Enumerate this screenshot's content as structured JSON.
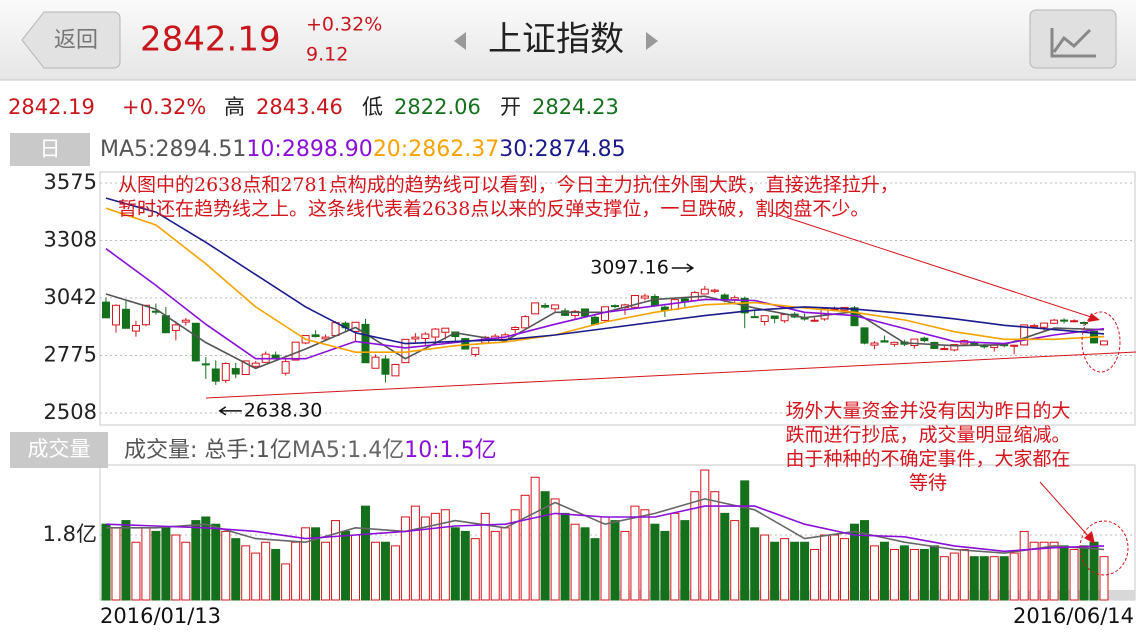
{
  "header": {
    "back": "返回",
    "price": "2842.19",
    "change_pct": "+0.32%",
    "change": "9.12",
    "title": "上证指数"
  },
  "quote": {
    "price": "2842.19",
    "change_pct": "+0.32%",
    "high_label": "高",
    "high": "2843.46",
    "low_label": "低",
    "low": "2822.06",
    "open_label": "开",
    "open": "2824.23"
  },
  "tabs": {
    "day": "日",
    "volume": "成交量"
  },
  "chart_data": [
    {
      "type": "candlestick",
      "up_color": "#d4151c",
      "down_color": "#15701c",
      "ylim": [
        2508,
        3575
      ],
      "yticks": [
        3575,
        3308,
        3042,
        2775,
        2508
      ],
      "grid": true,
      "ohlc": [
        [
          3022.3,
          3044.1,
          2949.4,
          2949.6
        ],
        [
          2916.6,
          3011.7,
          2880.5,
          3007.6
        ],
        [
          2988.9,
          3031.2,
          2900.5,
          2901.0
        ],
        [
          2888.0,
          2936.1,
          2861.9,
          2913.8
        ],
        [
          2917.6,
          3008.5,
          2910.8,
          3007.7
        ],
        [
          2980.2,
          3015.9,
          2964.6,
          2976.7
        ],
        [
          2959.3,
          2999.6,
          2878.2,
          2880.5
        ],
        [
          2891.2,
          2933.5,
          2844.5,
          2916.6
        ],
        [
          2929.8,
          2949.0,
          2914.8,
          2938.5
        ],
        [
          2924.2,
          2926.1,
          2746.2,
          2749.8
        ],
        [
          2736.0,
          2767.2,
          2666.3,
          2735.6
        ],
        [
          2712.1,
          2752.2,
          2638.3,
          2655.7
        ],
        [
          2659.5,
          2743.0,
          2647.3,
          2737.6
        ],
        [
          2714.0,
          2740.0,
          2669.5,
          2688.9
        ],
        [
          2686.6,
          2750.1,
          2686.6,
          2749.6
        ],
        [
          2724.6,
          2749.5,
          2715.5,
          2739.3
        ],
        [
          2743.1,
          2793.1,
          2741.5,
          2781.0
        ],
        [
          2776.6,
          2793.2,
          2760.6,
          2763.5
        ],
        [
          2692.6,
          2756.2,
          2682.1,
          2746.2
        ],
        [
          2753.5,
          2837.2,
          2752.0,
          2836.6
        ],
        [
          2832.8,
          2868.6,
          2826.9,
          2867.3
        ],
        [
          2870.5,
          2891.9,
          2858.5,
          2862.9
        ],
        [
          2851.9,
          2872.0,
          2841.9,
          2860.0
        ],
        [
          2867.3,
          2934.0,
          2867.3,
          2927.2
        ],
        [
          2924.6,
          2932.4,
          2888.4,
          2903.3
        ],
        [
          2886.6,
          2929.1,
          2837.3,
          2928.9
        ],
        [
          2919.2,
          2945.0,
          2741.0,
          2741.3
        ],
        [
          2715.6,
          2780.0,
          2715.6,
          2767.2
        ],
        [
          2758.4,
          2775.6,
          2650.0,
          2688.0
        ],
        [
          2680.3,
          2735.8,
          2680.3,
          2733.2
        ],
        [
          2741.6,
          2849.7,
          2741.6,
          2849.7
        ],
        [
          2851.7,
          2878.5,
          2830.3,
          2859.8
        ],
        [
          2853.8,
          2882.9,
          2823.5,
          2874.2
        ],
        [
          2860.5,
          2902.0,
          2827.0,
          2897.3
        ],
        [
          2882.5,
          2902.0,
          2848.5,
          2901.4
        ],
        [
          2883.9,
          2883.9,
          2839.6,
          2862.6
        ],
        [
          2853.1,
          2855.2,
          2804.1,
          2804.7
        ],
        [
          2779.6,
          2810.8,
          2768.0,
          2810.3
        ],
        [
          2833.1,
          2866.0,
          2833.1,
          2859.5
        ],
        [
          2848.3,
          2874.6,
          2841.4,
          2864.4
        ],
        [
          2850.0,
          2880.6,
          2846.8,
          2870.4
        ],
        [
          2895.3,
          2911.0,
          2875.8,
          2904.8
        ],
        [
          2903.0,
          2961.8,
          2902.0,
          2955.1
        ],
        [
          2968.0,
          3018.9,
          2968.0,
          3018.8
        ],
        [
          3006.8,
          3017.8,
          2992.8,
          2999.4
        ],
        [
          2991.3,
          3010.9,
          2979.6,
          3009.3
        ],
        [
          2982.0,
          2994.0,
          2958.0,
          2961.0
        ],
        [
          2960.6,
          2986.3,
          2941.0,
          2979.4
        ],
        [
          2990.6,
          2990.6,
          2954.5,
          2957.8
        ],
        [
          2952.1,
          2963.1,
          2919.8,
          2919.8
        ],
        [
          2937.5,
          3000.9,
          2937.5,
          3000.6
        ],
        [
          3006.4,
          3012.0,
          2993.9,
          3003.9
        ],
        [
          2997.2,
          3015.0,
          2963.0,
          3009.5
        ],
        [
          2998.5,
          3053.7,
          2995.6,
          3053.1
        ],
        [
          3041.3,
          3062.0,
          3030.2,
          3050.6
        ],
        [
          3048.4,
          3059.6,
          3006.7,
          3008.4
        ],
        [
          2999.0,
          3006.0,
          2953.3,
          2985.0
        ],
        [
          2988.5,
          3034.0,
          2988.5,
          3034.0
        ],
        [
          3037.6,
          3045.0,
          2997.8,
          3023.7
        ],
        [
          3030.0,
          3074.0,
          3030.0,
          3066.6
        ],
        [
          3060.3,
          3097.16,
          3060.3,
          3082.4
        ],
        [
          3072.4,
          3084.5,
          3064.0,
          3078.1
        ],
        [
          3055.4,
          3063.4,
          3020.9,
          3033.7
        ],
        [
          3034.0,
          3053.2,
          3010.5,
          3042.8
        ],
        [
          3040.0,
          3048.0,
          2901.5,
          2972.6
        ],
        [
          2955.0,
          2983.0,
          2952.0,
          2953.7
        ],
        [
          2932.6,
          2960.4,
          2913.8,
          2959.2
        ],
        [
          2958.0,
          2960.3,
          2924.4,
          2946.7
        ],
        [
          2936.0,
          2965.0,
          2926.0,
          2964.7
        ],
        [
          2966.6,
          2975.4,
          2948.0,
          2953.5
        ],
        [
          2948.6,
          2970.0,
          2936.6,
          2945.6
        ],
        [
          2937.5,
          2951.2,
          2931.1,
          2938.3
        ],
        [
          2944.3,
          2993.1,
          2935.9,
          2992.6
        ],
        [
          2990.0,
          3002.0,
          2979.1,
          2991.3
        ],
        [
          2985.0,
          2998.9,
          2977.5,
          2997.8
        ],
        [
          2996.0,
          3004.0,
          2913.1,
          2913.1
        ],
        [
          2903.0,
          2903.0,
          2826.6,
          2832.1
        ],
        [
          2822.9,
          2841.0,
          2803.5,
          2832.6
        ],
        [
          2843.1,
          2867.5,
          2836.0,
          2837.0
        ],
        [
          2826.8,
          2838.5,
          2815.9,
          2835.9
        ],
        [
          2837.0,
          2848.0,
          2818.5,
          2827.1
        ],
        [
          2821.0,
          2851.3,
          2806.9,
          2850.9
        ],
        [
          2855.0,
          2862.2,
          2835.9,
          2843.7
        ],
        [
          2835.5,
          2838.6,
          2806.7,
          2807.5
        ],
        [
          2804.3,
          2818.9,
          2799.5,
          2806.9
        ],
        [
          2800.6,
          2825.8,
          2794.5,
          2825.5
        ],
        [
          2828.6,
          2849.2,
          2825.2,
          2843.7
        ],
        [
          2836.0,
          2842.5,
          2818.3,
          2821.7
        ],
        [
          2821.8,
          2828.5,
          2806.2,
          2815.1
        ],
        [
          2811.5,
          2825.4,
          2792.9,
          2822.4
        ],
        [
          2825.0,
          2829.3,
          2812.2,
          2821.0
        ],
        [
          2817.5,
          2825.2,
          2780.8,
          2822.4
        ],
        [
          2823.8,
          2917.4,
          2821.3,
          2916.6
        ],
        [
          2908.2,
          2922.0,
          2900.0,
          2913.5
        ],
        [
          2905.6,
          2926.0,
          2887.1,
          2925.2
        ],
        [
          2924.3,
          2944.0,
          2920.7,
          2938.7
        ],
        [
          2939.0,
          2946.9,
          2923.3,
          2934.1
        ],
        [
          2936.0,
          2942.6,
          2928.0,
          2936.0
        ],
        [
          2928.0,
          2932.6,
          2911.2,
          2927.2
        ],
        [
          2887.0,
          2887.0,
          2830.0,
          2833.1
        ],
        [
          2824.23,
          2843.46,
          2822.06,
          2842.19
        ]
      ],
      "series": [
        {
          "name": "MA5:2894.51",
          "color": "#555555",
          "x": [
            0,
            5,
            10,
            15,
            20,
            25,
            30,
            35,
            40,
            45,
            50,
            55,
            60,
            65,
            70,
            75,
            80,
            85,
            90,
            95,
            100
          ],
          "values": [
            3060,
            2990,
            2835,
            2715,
            2805,
            2905,
            2760,
            2880,
            2842,
            2975,
            2975,
            3035,
            3050,
            2995,
            2950,
            2978,
            2833,
            2820,
            2825,
            2902,
            2894.51
          ]
        },
        {
          "name": "10:2898.90",
          "color": "#8a10d8",
          "x": [
            0,
            5,
            10,
            15,
            20,
            25,
            30,
            35,
            40,
            45,
            50,
            55,
            60,
            65,
            70,
            75,
            80,
            85,
            90,
            95,
            100
          ],
          "values": [
            3270,
            3100,
            2920,
            2760,
            2760,
            2840,
            2810,
            2835,
            2860,
            2920,
            2975,
            3005,
            3035,
            3030,
            2975,
            2960,
            2900,
            2840,
            2830,
            2870,
            2898.9
          ]
        },
        {
          "name": "20:2862.37",
          "color": "#f5a300",
          "x": [
            0,
            5,
            10,
            15,
            20,
            25,
            30,
            35,
            40,
            45,
            50,
            55,
            60,
            65,
            70,
            75,
            80,
            85,
            90,
            95,
            100
          ],
          "values": [
            3458,
            3380,
            3200,
            3000,
            2850,
            2790,
            2790,
            2820,
            2838,
            2870,
            2930,
            2975,
            3010,
            3020,
            2995,
            2975,
            2940,
            2885,
            2850,
            2850,
            2862.37
          ]
        },
        {
          "name": "30:2874.85",
          "color": "#1b1b8c",
          "x": [
            0,
            5,
            10,
            15,
            20,
            25,
            30,
            35,
            40,
            45,
            50,
            55,
            60,
            65,
            70,
            75,
            80,
            85,
            90,
            95,
            100
          ],
          "values": [
            3505,
            3440,
            3300,
            3150,
            3000,
            2880,
            2830,
            2840,
            2848,
            2870,
            2900,
            2930,
            2960,
            2985,
            3000,
            2990,
            2970,
            2945,
            2915,
            2895,
            2874.85
          ]
        }
      ],
      "annotations": [
        {
          "label": "3097.16"
        },
        {
          "label": "2638.30"
        }
      ],
      "notes": [
        {
          "lines": [
            "从图中的2638点和2781点构成的趋势线可以看到，今日主力抗住外围大跌，直接选择拉升，",
            "暂时还在趋势线之上。这条线代表着2638点以来的反弹支撑位，一旦跌破，割肉盘不少。"
          ]
        },
        {
          "lines": [
            "场外大量资金并没有因为昨日的大",
            "跌而进行抄底，成交量明显缩减。",
            "由于种种的不确定事件，大家都在",
            "等待"
          ]
        }
      ]
    },
    {
      "type": "bar",
      "title": "成交量: 总手:1亿",
      "ylim": [
        0,
        3.74
      ],
      "yticks": [
        {
          "value": 1.8,
          "label": "1.8亿"
        }
      ],
      "grid": true,
      "categories": [
        "2016/01/13",
        null,
        null,
        null,
        null,
        null,
        null,
        null,
        null,
        null,
        null,
        null,
        null,
        null,
        null,
        null,
        null,
        null,
        null,
        null,
        null,
        null,
        null,
        null,
        null,
        null,
        null,
        null,
        null,
        null,
        null,
        null,
        null,
        null,
        null,
        null,
        null,
        null,
        null,
        null,
        null,
        null,
        null,
        null,
        null,
        null,
        null,
        null,
        null,
        null,
        null,
        null,
        null,
        null,
        null,
        null,
        null,
        null,
        null,
        null,
        null,
        null,
        null,
        null,
        null,
        null,
        null,
        null,
        null,
        null,
        null,
        null,
        null,
        null,
        null,
        null,
        null,
        null,
        null,
        null,
        null,
        null,
        null,
        null,
        null,
        null,
        null,
        null,
        null,
        null,
        null,
        null,
        null,
        null,
        null,
        null,
        null,
        null,
        null,
        null,
        "2016/06/14"
      ],
      "values": [
        2.1,
        2.0,
        2.2,
        1.6,
        2.0,
        1.9,
        2.0,
        1.8,
        1.6,
        2.2,
        2.3,
        2.1,
        1.9,
        1.7,
        1.5,
        1.3,
        1.6,
        1.4,
        1.0,
        1.6,
        2.0,
        2.0,
        1.6,
        2.2,
        1.9,
        1.8,
        2.6,
        1.6,
        1.6,
        1.5,
        2.3,
        2.6,
        2.3,
        2.4,
        2.5,
        2.0,
        1.9,
        1.7,
        2.4,
        1.9,
        2.0,
        2.5,
        2.9,
        3.4,
        3.0,
        2.8,
        2.4,
        2.1,
        2.0,
        1.7,
        2.3,
        2.2,
        1.9,
        2.6,
        2.5,
        2.1,
        1.9,
        2.4,
        2.2,
        3.0,
        3.6,
        3.0,
        2.4,
        2.2,
        3.3,
        2.0,
        1.8,
        1.6,
        1.7,
        1.6,
        1.6,
        1.4,
        1.8,
        1.8,
        1.7,
        2.1,
        2.2,
        1.5,
        1.6,
        1.4,
        1.5,
        1.4,
        1.4,
        1.5,
        1.2,
        1.3,
        1.4,
        1.2,
        1.2,
        1.2,
        1.2,
        1.3,
        1.9,
        1.6,
        1.6,
        1.6,
        1.5,
        1.4,
        1.5,
        1.6,
        1.2
      ],
      "series": [
        {
          "name": "MA5:1.4亿",
          "color": "#666666",
          "x": [
            0,
            5,
            10,
            15,
            20,
            25,
            30,
            35,
            40,
            45,
            50,
            55,
            60,
            65,
            70,
            75,
            80,
            85,
            90,
            95,
            100
          ],
          "values": [
            2.0,
            2.0,
            2.1,
            1.7,
            1.6,
            2.0,
            1.9,
            2.2,
            2.0,
            2.7,
            2.1,
            2.4,
            2.8,
            2.5,
            1.7,
            1.9,
            1.6,
            1.4,
            1.3,
            1.5,
            1.4
          ]
        },
        {
          "name": "10:1.5亿",
          "color": "#8a10d8",
          "x": [
            0,
            5,
            10,
            15,
            20,
            25,
            30,
            35,
            40,
            45,
            50,
            55,
            60,
            65,
            70,
            75,
            80,
            85,
            90,
            95,
            100
          ],
          "values": [
            2.1,
            2.05,
            2.0,
            1.9,
            1.7,
            1.8,
            1.9,
            2.05,
            2.1,
            2.4,
            2.3,
            2.3,
            2.6,
            2.6,
            2.1,
            1.8,
            1.75,
            1.5,
            1.35,
            1.45,
            1.5
          ]
        }
      ]
    }
  ]
}
